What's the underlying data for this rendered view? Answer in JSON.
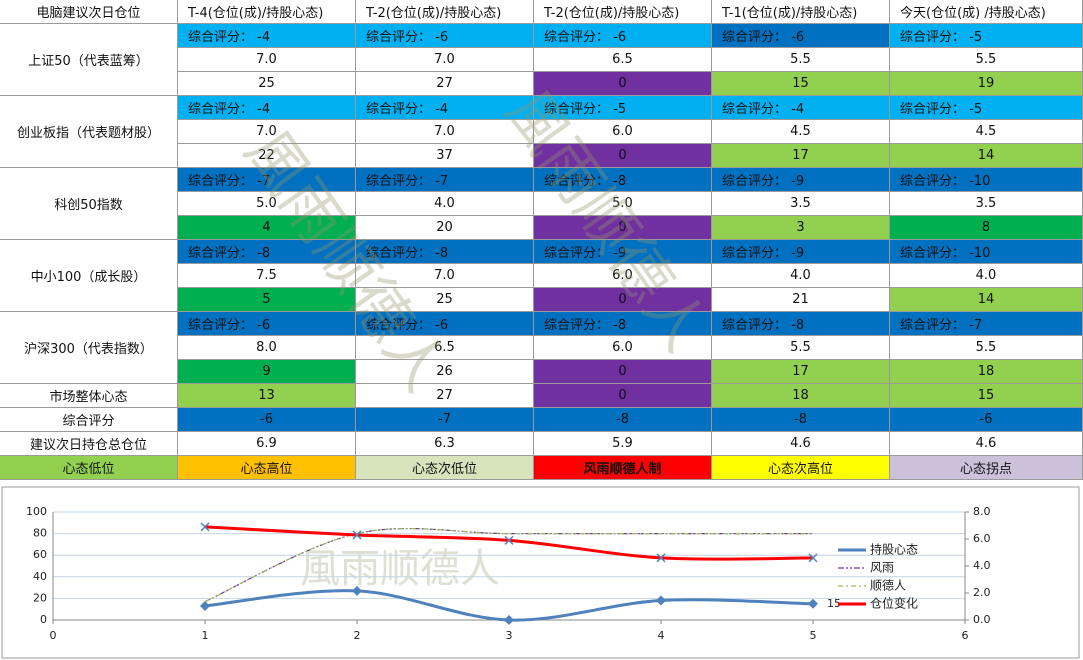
{
  "table": {
    "header": [
      "电脑建议次日仓位",
      "T-4(仓位(成)/持股心态)",
      "T-2(仓位(成)/持股心态)",
      "T-2(仓位(成)/持股心态)",
      "T-1(仓位(成)/持股心态)",
      "今天(仓位(成) /持股心态)"
    ],
    "groups": [
      {
        "name": "上证50（代表蓝筹）",
        "rows": [
          [
            {
              "text": "综合评分： -4",
              "fill": "#00b0f0"
            },
            {
              "text": "综合评分： -6",
              "fill": "#00b0f0"
            },
            {
              "text": "综合评分： -6",
              "fill": "#00b0f0"
            },
            {
              "text": "综合评分： -6",
              "fill": "#0070c0"
            },
            {
              "text": "综合评分： -5",
              "fill": "#00b0f0"
            }
          ],
          [
            {
              "text": "7.0",
              "fill": "#ffffff"
            },
            {
              "text": "7.0",
              "fill": "#ffffff"
            },
            {
              "text": "6.5",
              "fill": "#ffffff"
            },
            {
              "text": "5.5",
              "fill": "#ffffff"
            },
            {
              "text": "5.5",
              "fill": "#ffffff"
            }
          ],
          [
            {
              "text": "25",
              "fill": "#ffffff"
            },
            {
              "text": "27",
              "fill": "#ffffff"
            },
            {
              "text": "0",
              "fill": "#7030a0"
            },
            {
              "text": "15",
              "fill": "#92d050"
            },
            {
              "text": "19",
              "fill": "#92d050"
            }
          ]
        ]
      },
      {
        "name": "创业板指（代表题材股）",
        "rows": [
          [
            {
              "text": "综合评分： -4",
              "fill": "#00b0f0"
            },
            {
              "text": "综合评分： -4",
              "fill": "#00b0f0"
            },
            {
              "text": "综合评分： -5",
              "fill": "#00b0f0"
            },
            {
              "text": "综合评分： -4",
              "fill": "#00b0f0"
            },
            {
              "text": "综合评分： -5",
              "fill": "#00b0f0"
            }
          ],
          [
            {
              "text": "7.0",
              "fill": "#ffffff"
            },
            {
              "text": "7.0",
              "fill": "#ffffff"
            },
            {
              "text": "6.0",
              "fill": "#ffffff"
            },
            {
              "text": "4.5",
              "fill": "#ffffff"
            },
            {
              "text": "4.5",
              "fill": "#ffffff"
            }
          ],
          [
            {
              "text": "22",
              "fill": "#ffffff"
            },
            {
              "text": "37",
              "fill": "#ffffff"
            },
            {
              "text": "0",
              "fill": "#7030a0"
            },
            {
              "text": "17",
              "fill": "#92d050"
            },
            {
              "text": "14",
              "fill": "#92d050"
            }
          ]
        ]
      },
      {
        "name": "科创50指数",
        "rows": [
          [
            {
              "text": "综合评分： -7",
              "fill": "#0070c0"
            },
            {
              "text": "综合评分： -7",
              "fill": "#0070c0"
            },
            {
              "text": "综合评分： -8",
              "fill": "#0070c0"
            },
            {
              "text": "综合评分： -9",
              "fill": "#0070c0"
            },
            {
              "text": "综合评分： -10",
              "fill": "#0070c0"
            }
          ],
          [
            {
              "text": "5.0",
              "fill": "#ffffff"
            },
            {
              "text": "4.0",
              "fill": "#ffffff"
            },
            {
              "text": "5.0",
              "fill": "#ffffff"
            },
            {
              "text": "3.5",
              "fill": "#ffffff"
            },
            {
              "text": "3.5",
              "fill": "#ffffff"
            }
          ],
          [
            {
              "text": "4",
              "fill": "#00b050"
            },
            {
              "text": "20",
              "fill": "#ffffff"
            },
            {
              "text": "0",
              "fill": "#7030a0"
            },
            {
              "text": "3",
              "fill": "#92d050"
            },
            {
              "text": "8",
              "fill": "#00b050"
            }
          ]
        ]
      },
      {
        "name": "中小100（成长股）",
        "rows": [
          [
            {
              "text": "综合评分： -8",
              "fill": "#0070c0"
            },
            {
              "text": "综合评分： -8",
              "fill": "#0070c0"
            },
            {
              "text": "综合评分： -9",
              "fill": "#0070c0"
            },
            {
              "text": "综合评分： -9",
              "fill": "#0070c0"
            },
            {
              "text": "综合评分： -10",
              "fill": "#0070c0"
            }
          ],
          [
            {
              "text": "7.5",
              "fill": "#ffffff"
            },
            {
              "text": "7.0",
              "fill": "#ffffff"
            },
            {
              "text": "6.0",
              "fill": "#ffffff"
            },
            {
              "text": "4.0",
              "fill": "#ffffff"
            },
            {
              "text": "4.0",
              "fill": "#ffffff"
            }
          ],
          [
            {
              "text": "5",
              "fill": "#00b050"
            },
            {
              "text": "25",
              "fill": "#ffffff"
            },
            {
              "text": "0",
              "fill": "#7030a0"
            },
            {
              "text": "21",
              "fill": "#ffffff"
            },
            {
              "text": "14",
              "fill": "#92d050"
            }
          ]
        ]
      },
      {
        "name": "沪深300（代表指数）",
        "rows": [
          [
            {
              "text": "综合评分： -6",
              "fill": "#0070c0"
            },
            {
              "text": "综合评分： -6",
              "fill": "#0070c0"
            },
            {
              "text": "综合评分： -8",
              "fill": "#0070c0"
            },
            {
              "text": "综合评分： -8",
              "fill": "#0070c0"
            },
            {
              "text": "综合评分： -7",
              "fill": "#0070c0"
            }
          ],
          [
            {
              "text": "8.0",
              "fill": "#ffffff"
            },
            {
              "text": "6.5",
              "fill": "#ffffff"
            },
            {
              "text": "6.0",
              "fill": "#ffffff"
            },
            {
              "text": "5.5",
              "fill": "#ffffff"
            },
            {
              "text": "5.5",
              "fill": "#ffffff"
            }
          ],
          [
            {
              "text": "9",
              "fill": "#00b050"
            },
            {
              "text": "26",
              "fill": "#ffffff"
            },
            {
              "text": "0",
              "fill": "#7030a0"
            },
            {
              "text": "17",
              "fill": "#92d050"
            },
            {
              "text": "18",
              "fill": "#92d050"
            }
          ]
        ]
      }
    ],
    "summary": [
      {
        "name": "市场整体心态",
        "cells": [
          {
            "text": "13",
            "fill": "#92d050"
          },
          {
            "text": "27",
            "fill": "#ffffff"
          },
          {
            "text": "0",
            "fill": "#7030a0"
          },
          {
            "text": "18",
            "fill": "#92d050"
          },
          {
            "text": "15",
            "fill": "#92d050"
          }
        ]
      },
      {
        "name": "综合评分",
        "cells": [
          {
            "text": "-6",
            "fill": "#0070c0"
          },
          {
            "text": "-7",
            "fill": "#0070c0"
          },
          {
            "text": "-8",
            "fill": "#0070c0"
          },
          {
            "text": "-8",
            "fill": "#0070c0"
          },
          {
            "text": "-6",
            "fill": "#0070c0"
          }
        ]
      },
      {
        "name": "建议次日持仓总仓位",
        "cells": [
          {
            "text": "6.9",
            "fill": "#ffffff"
          },
          {
            "text": "6.3",
            "fill": "#ffffff"
          },
          {
            "text": "5.9",
            "fill": "#ffffff"
          },
          {
            "text": "4.6",
            "fill": "#ffffff"
          },
          {
            "text": "4.6",
            "fill": "#ffffff"
          }
        ]
      }
    ],
    "legend": [
      {
        "text": "心态低位",
        "fill": "#92d050"
      },
      {
        "text": "心态高位",
        "fill": "#ffc000"
      },
      {
        "text": "心态次低位",
        "fill": "#d8e4bc"
      },
      {
        "text": "风雨顺德人制",
        "fill": "#ff0000"
      },
      {
        "text": "心态次高位",
        "fill": "#ffff00"
      },
      {
        "text": "心态拐点",
        "fill": "#ccc0da"
      }
    ],
    "watermark": "風雨顺德人"
  },
  "chart_data": {
    "type": "line",
    "watermark": "風雨顺德人",
    "x": [
      1,
      2,
      3,
      4,
      5
    ],
    "xlim": [
      0,
      6
    ],
    "xticks": [
      0,
      1,
      2,
      3,
      4,
      5,
      6
    ],
    "ylim": [
      0,
      100
    ],
    "yticks": [
      0,
      20,
      40,
      60,
      80,
      100
    ],
    "y2lim": [
      0,
      8
    ],
    "y2ticks": [
      {
        "value": 0,
        "label": "0.0"
      },
      {
        "value": 2,
        "label": "2.0"
      },
      {
        "value": 4,
        "label": "4.0"
      },
      {
        "value": 6,
        "label": "6.0"
      },
      {
        "value": 8,
        "label": "8.0"
      }
    ],
    "grid": true,
    "legend": "right",
    "series": [
      {
        "name": "持股心态",
        "color": "#4f81bd",
        "values": [
          13,
          27,
          0,
          18,
          15
        ],
        "value_labels": [
          null,
          null,
          null,
          null,
          "15"
        ],
        "marker": "diamond"
      },
      {
        "name": "风雨",
        "color": "#7030a0",
        "values": [
          17,
          80,
          80,
          80,
          80
        ],
        "dash": "6 2 2 2 2 2"
      },
      {
        "name": "顺德人",
        "color": "#9bbb59",
        "values": [
          17,
          80,
          80,
          80,
          80
        ],
        "dash": "5 3 2 3"
      },
      {
        "name": "仓位变化",
        "color": "#ff0000",
        "values": [
          6.9,
          6.3,
          5.9,
          4.6,
          4.6
        ],
        "axis": "y2",
        "marker": "x"
      }
    ]
  }
}
